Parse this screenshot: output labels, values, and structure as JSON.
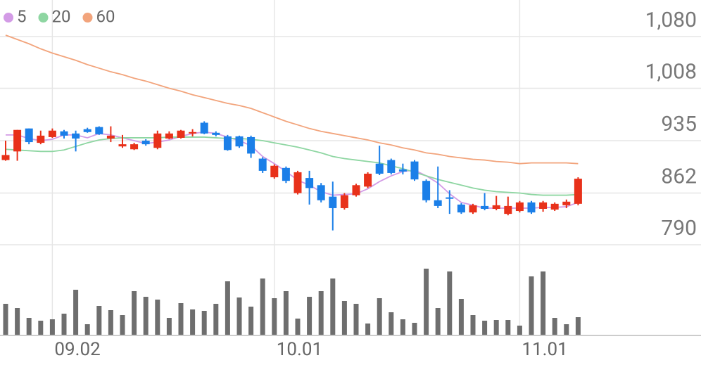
{
  "chart_data": {
    "type": "candlestick",
    "categories": [
      null,
      null,
      null,
      null,
      "09.02",
      null,
      null,
      null,
      null,
      null,
      null,
      null,
      null,
      null,
      null,
      null,
      null,
      null,
      null,
      null,
      null,
      null,
      null,
      "10.01",
      null,
      null,
      null,
      null,
      null,
      null,
      null,
      null,
      null,
      null,
      null,
      null,
      null,
      null,
      null,
      null,
      null,
      null,
      null,
      null,
      "11.01",
      null,
      null,
      null,
      null,
      null
    ],
    "open": [
      908,
      920,
      952,
      932,
      940,
      948,
      945,
      951,
      954,
      938,
      927,
      923,
      935,
      925,
      938,
      939,
      945,
      960,
      946,
      941,
      941,
      940,
      910,
      884,
      897,
      862,
      883,
      873,
      857,
      841,
      859,
      871,
      903,
      908,
      895,
      906,
      879,
      852,
      856,
      846,
      835,
      844,
      840,
      833,
      837,
      849,
      840,
      839,
      845,
      847
    ],
    "high": [
      935,
      950,
      952,
      949,
      952,
      950,
      949,
      953,
      955,
      955,
      943,
      932,
      937,
      949,
      948,
      950,
      951,
      962,
      948,
      943,
      942,
      942,
      912,
      902,
      899,
      893,
      893,
      876,
      878,
      862,
      875,
      891,
      928,
      910,
      903,
      908,
      881,
      899,
      866,
      848,
      847,
      862,
      858,
      857,
      851,
      851,
      851,
      849,
      853,
      884
    ],
    "low": [
      907,
      907,
      930,
      930,
      939,
      938,
      920,
      946,
      943,
      933,
      925,
      922,
      928,
      923,
      937,
      938,
      941,
      944,
      941,
      921,
      925,
      911,
      890,
      882,
      876,
      860,
      846,
      849,
      810,
      839,
      857,
      869,
      887,
      888,
      888,
      879,
      849,
      841,
      833,
      833,
      833,
      838,
      838,
      831,
      835,
      833,
      836,
      837,
      841,
      845
    ],
    "close": [
      915,
      950,
      933,
      942,
      949,
      942,
      938,
      947,
      944,
      942,
      930,
      930,
      930,
      945,
      945,
      949,
      947,
      945,
      943,
      922,
      927,
      917,
      893,
      900,
      879,
      891,
      869,
      852,
      841,
      859,
      873,
      889,
      889,
      890,
      892,
      881,
      852,
      844,
      854,
      835,
      845,
      840,
      845,
      844,
      849,
      835,
      849,
      847,
      850,
      882
    ],
    "up_color": "#e8311a",
    "down_color": "#1b7fe8",
    "series": [
      {
        "name": "5",
        "color": "#d39be6",
        "values": [
          943,
          943,
          938,
          935,
          937,
          943,
          943,
          939,
          945,
          943,
          939,
          935,
          931,
          933,
          936,
          941,
          945,
          947,
          945,
          940,
          935,
          928,
          913,
          903,
          892,
          880,
          873,
          864,
          859,
          860,
          861,
          868,
          878,
          886,
          892,
          894,
          886,
          876,
          861,
          849,
          845,
          841,
          841,
          841,
          841,
          841,
          842,
          842,
          843,
          849
        ]
      },
      {
        "name": "20",
        "color": "#8ed6a2",
        "values": [
          923,
          922,
          921,
          920,
          920,
          922,
          927,
          932,
          936,
          938,
          939,
          939,
          939,
          939,
          940,
          940,
          940,
          940,
          939,
          938,
          938,
          937,
          935,
          932,
          929,
          926,
          922,
          918,
          913,
          910,
          908,
          906,
          904,
          900,
          896,
          891,
          886,
          881,
          877,
          873,
          869,
          866,
          864,
          863,
          862,
          860,
          859,
          859,
          859,
          860
        ]
      },
      {
        "name": "60",
        "color": "#f2a47c",
        "values": [
          1082,
          1076,
          1070,
          1063,
          1057,
          1052,
          1047,
          1041,
          1036,
          1031,
          1027,
          1022,
          1018,
          1013,
          1008,
          1004,
          999,
          995,
          991,
          987,
          984,
          980,
          974,
          968,
          962,
          957,
          952,
          948,
          945,
          942,
          939,
          936,
          932,
          929,
          925,
          922,
          918,
          916,
          913,
          911,
          909,
          908,
          906,
          905,
          903,
          904,
          904,
          904,
          904,
          903
        ]
      }
    ],
    "volume": {
      "color": "#6e6e6e",
      "values": [
        44,
        38,
        24,
        20,
        22,
        30,
        64,
        15,
        41,
        35,
        28,
        62,
        54,
        50,
        24,
        45,
        36,
        34,
        44,
        76,
        53,
        40,
        80,
        52,
        62,
        23,
        54,
        62,
        80,
        48,
        44,
        16,
        52,
        32,
        22,
        17,
        94,
        38,
        90,
        51,
        28,
        20,
        21,
        21,
        13,
        83,
        90,
        24,
        15,
        25
      ]
    },
    "ylim": [
      790,
      1131
    ],
    "yticks": [
      790,
      862,
      935,
      {
        "value": 1008,
        "label": "1,008"
      },
      {
        "value": 1080,
        "label": "1,080"
      }
    ],
    "y2lim": [
      0,
      130
    ],
    "grid": true
  }
}
